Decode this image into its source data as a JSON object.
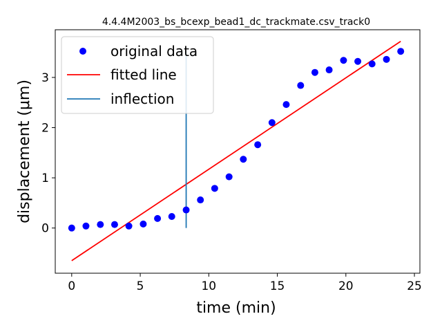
{
  "chart_data": {
    "type": "scatter",
    "title": "4.4.4M2003_bs_bcexp_bead1_dc_trackmate.csv_track0",
    "xlabel": "time (min)",
    "ylabel": "displacement (μm)",
    "xlim": [
      -1.2,
      25.4
    ],
    "ylim": [
      -0.9,
      3.95
    ],
    "xticks": [
      0,
      5,
      10,
      15,
      20,
      25
    ],
    "yticks": [
      0,
      1,
      2,
      3
    ],
    "grid": false,
    "legend_position": "top-left",
    "series": [
      {
        "name": "original data",
        "kind": "scatter",
        "color": "#0000ff",
        "x": [
          0,
          1.04,
          2.09,
          3.13,
          4.17,
          5.22,
          6.26,
          7.3,
          8.35,
          9.39,
          10.43,
          11.48,
          12.52,
          13.57,
          14.61,
          15.65,
          16.7,
          17.74,
          18.78,
          19.83,
          20.87,
          21.91,
          22.96,
          24.0
        ],
        "y": [
          0.0,
          0.04,
          0.07,
          0.07,
          0.04,
          0.08,
          0.19,
          0.23,
          0.36,
          0.56,
          0.79,
          1.02,
          1.37,
          1.66,
          2.1,
          2.46,
          2.84,
          3.1,
          3.15,
          3.34,
          3.32,
          3.27,
          3.36,
          3.52
        ]
      },
      {
        "name": "fitted line",
        "kind": "line",
        "color": "#ff0000",
        "x": [
          0,
          24.0
        ],
        "y": [
          -0.65,
          3.72
        ]
      },
      {
        "name": "inflection",
        "kind": "vline",
        "color": "#1f77b4",
        "x": [
          8.35,
          8.35
        ],
        "y": [
          0.0,
          3.52
        ]
      }
    ]
  }
}
